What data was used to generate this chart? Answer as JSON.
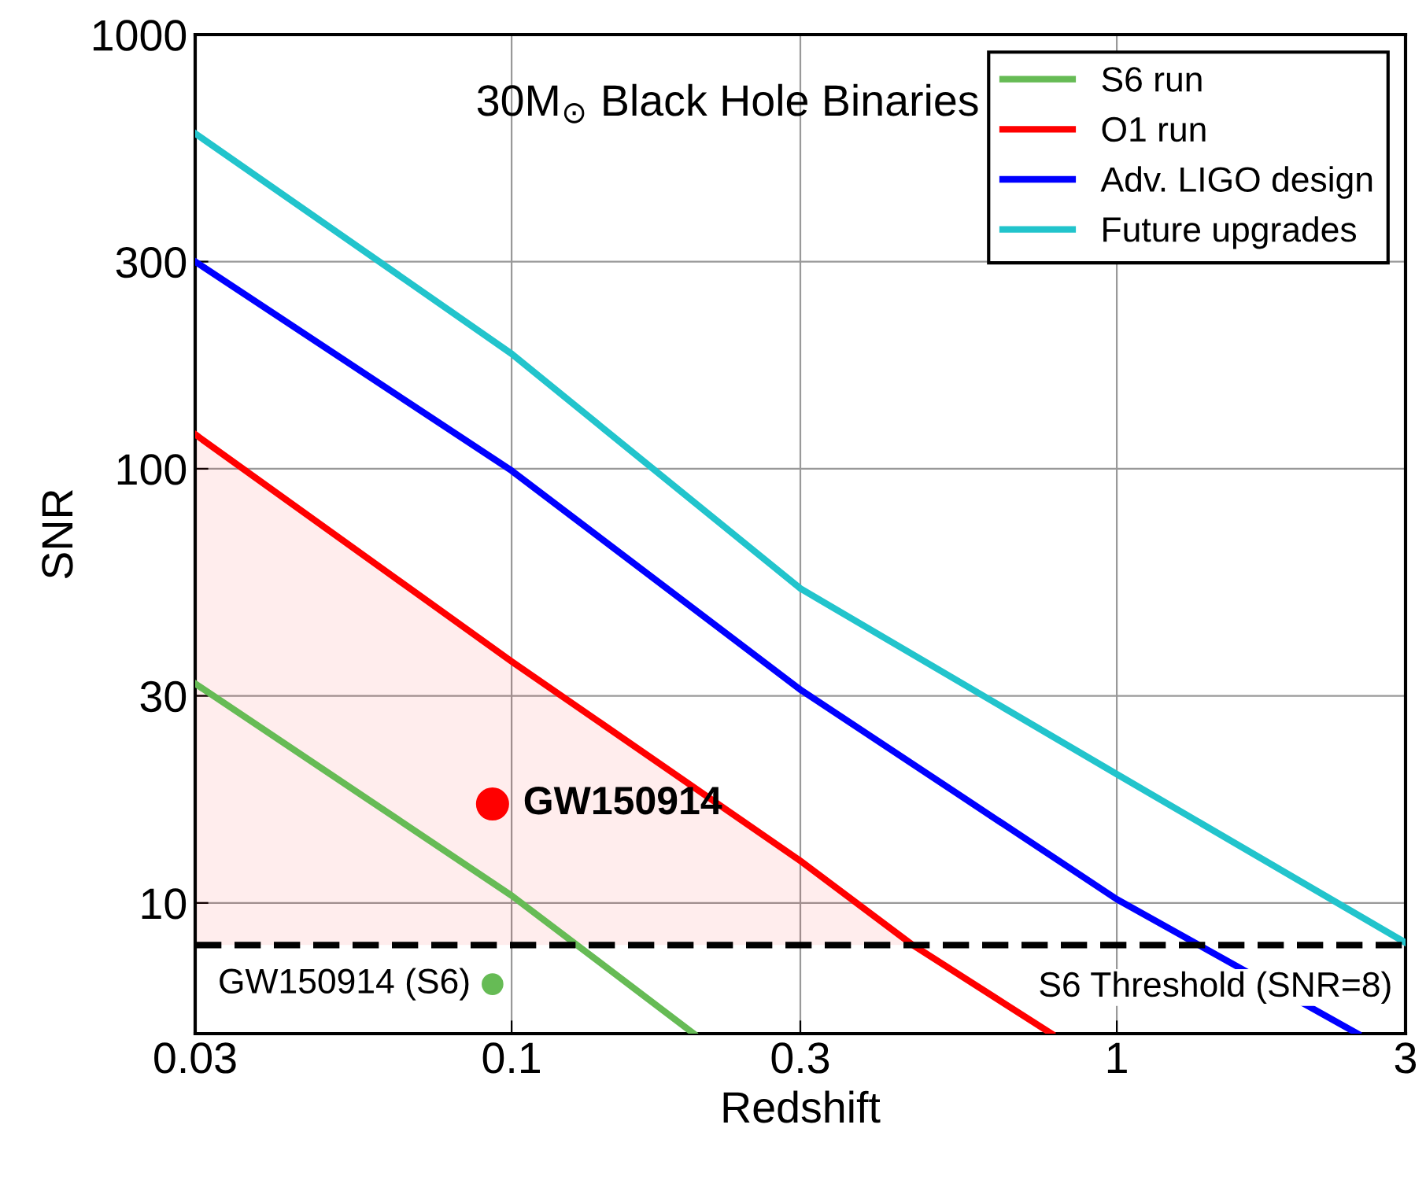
{
  "chart_data": {
    "type": "line",
    "title": "30M$_{⊙}$ Black Hole Binaries",
    "xlabel": "Redshift",
    "ylabel": "SNR",
    "log": "xy",
    "xlim": [
      0.03,
      3
    ],
    "ylim": [
      5,
      1000
    ],
    "xticks": [
      0.03,
      0.1,
      0.3,
      1,
      3
    ],
    "yticks": [
      10,
      30,
      100,
      300,
      1000
    ],
    "grid": true,
    "legend": "top right",
    "series": [
      {
        "name": "S6 run",
        "color": "#66bb55",
        "x": [
          0.03,
          0.1,
          0.2
        ],
        "values": [
          32,
          10.4,
          5
        ]
      },
      {
        "name": "O1 run",
        "color": "#ff0000",
        "x": [
          0.03,
          0.1,
          0.3,
          0.46,
          0.78
        ],
        "values": [
          120,
          36,
          12.5,
          8,
          5
        ],
        "lower": [
          8,
          8,
          8,
          8,
          null
        ],
        "upper": [
          120,
          36,
          12.5,
          8,
          null
        ]
      },
      {
        "name": "Adv. LIGO design",
        "color": "#0000ff",
        "x": [
          0.03,
          0.1,
          0.3,
          1,
          2.5
        ],
        "values": [
          300,
          99,
          31,
          10.2,
          5
        ]
      },
      {
        "name": "Future upgrades",
        "color": "#22c4cc",
        "x": [
          0.03,
          0.1,
          0.3,
          1,
          3
        ],
        "values": [
          592,
          184,
          53,
          19.8,
          8.1
        ]
      },
      {
        "type": "scatter",
        "color": "#ff0000",
        "x": [
          0.093
        ],
        "values": [
          16.9
        ]
      },
      {
        "type": "scatter",
        "color": "#66bb55",
        "x": [
          0.093
        ],
        "values": [
          6.5
        ]
      }
    ],
    "ref_lines": [
      {
        "axis": "y",
        "value": 8,
        "label": "S6 Threshold (SNR=8)",
        "color": "#000000",
        "line_style": "dashed"
      }
    ],
    "annotations": [
      {
        "text": "GW150914",
        "x": 0.093,
        "y": 16.9
      },
      {
        "text": "GW150914 (S6)",
        "x": 0.093,
        "y": 6.5
      }
    ]
  }
}
